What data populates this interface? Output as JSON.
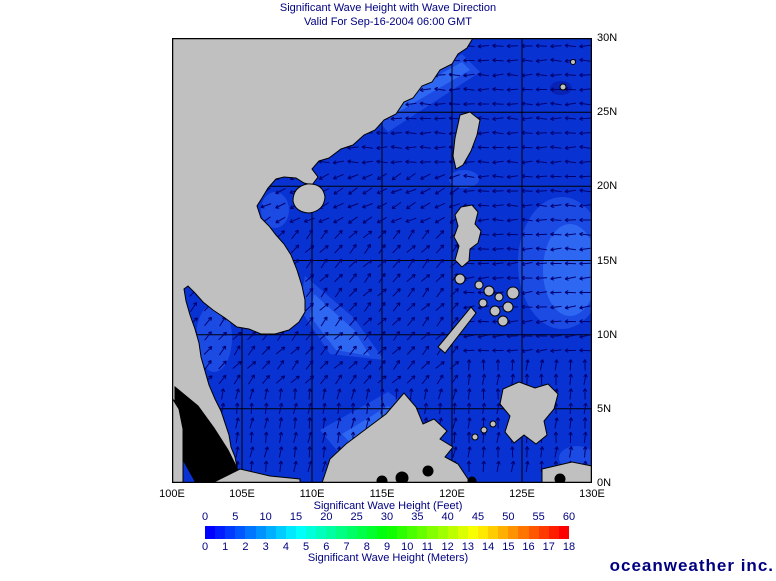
{
  "title": {
    "line1": "Significant Wave Height with Wave Direction",
    "line2": "Valid For Sep-16-2004 06:00 GMT"
  },
  "map": {
    "lat_labels": [
      "30N",
      "25N",
      "20N",
      "15N",
      "10N",
      "5N",
      "0N"
    ],
    "lon_labels": [
      "100E",
      "105E",
      "110E",
      "115E",
      "120E",
      "125E",
      "130E"
    ]
  },
  "legend": {
    "feet_label": "Significant Wave Height (Feet)",
    "meters_label": "Significant Wave Height (Meters)",
    "feet_ticks": [
      "0",
      "5",
      "10",
      "15",
      "20",
      "25",
      "30",
      "35",
      "40",
      "45",
      "50",
      "55",
      "60"
    ],
    "meters_ticks": [
      "0",
      "1",
      "2",
      "3",
      "4",
      "5",
      "6",
      "7",
      "8",
      "9",
      "10",
      "11",
      "12",
      "13",
      "14",
      "15",
      "16",
      "17",
      "18"
    ],
    "colorbar_colors": [
      "#0000FF",
      "#001DFF",
      "#003AFF",
      "#0057FF",
      "#0075FF",
      "#0092FF",
      "#00AFFF",
      "#00CCFF",
      "#00E9FF",
      "#00FFF8",
      "#00FFDB",
      "#00FFBD",
      "#00FFA0",
      "#00FF83",
      "#00FF66",
      "#00FF49",
      "#00FF2C",
      "#00FF0F",
      "#0FFF00",
      "#2CFF00",
      "#49FF00",
      "#66FF00",
      "#83FF00",
      "#A0FF00",
      "#BDFF00",
      "#DBFF00",
      "#F8FF00",
      "#FFE900",
      "#FFCC00",
      "#FFAF00",
      "#FF9200",
      "#FF7500",
      "#FF5700",
      "#FF3A00",
      "#FF1D00",
      "#FF0000"
    ]
  },
  "logo": {
    "text": "oceanweather inc."
  },
  "colors": {
    "title": "#000080",
    "axis_label": "#000000",
    "tick_label": "#000080",
    "sea": "#0833D2",
    "sea_patch_light": "#1C4BE4",
    "sea_patch_lighter": "#2E68F2",
    "sea_patch_dark": "#0722B4",
    "land": "#C0C0C0",
    "coast": "#000000",
    "grid": "#000000",
    "arrow": "#000070",
    "no_data": "#000000",
    "logo": "#000080"
  }
}
